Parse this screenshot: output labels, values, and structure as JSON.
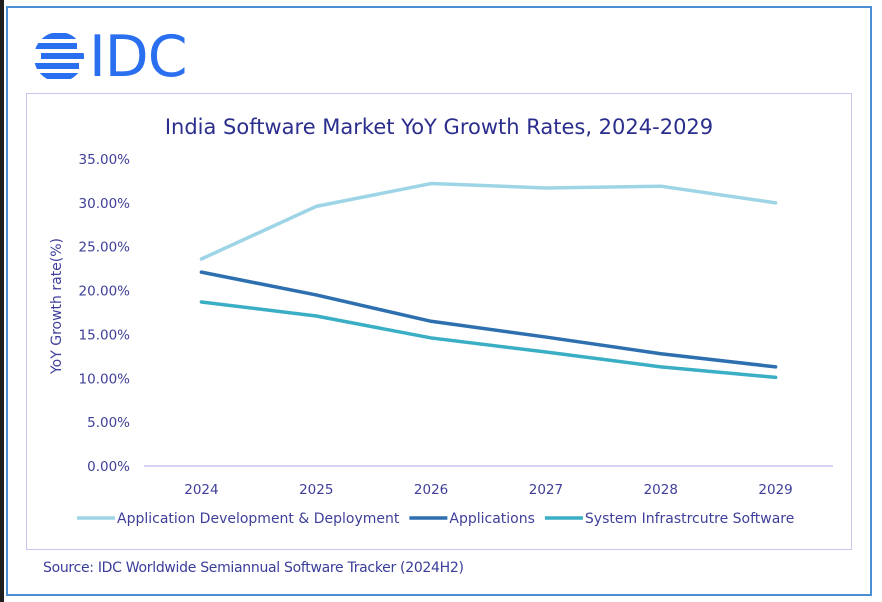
{
  "logo": {
    "text": "IDC",
    "icon": "idc-globe-icon",
    "color": "#2a6ff0"
  },
  "source": "Source: IDC Worldwide Semiannual Software Tracker (2024H2)",
  "chart_data": {
    "type": "line",
    "title": "India Software Market YoY Growth Rates, 2024-2029",
    "xlabel": "",
    "ylabel": "YoY Growth rate(%)",
    "x": [
      "2024",
      "2025",
      "2026",
      "2027",
      "2028",
      "2029"
    ],
    "ylim": [
      0,
      35
    ],
    "yticks": [
      0,
      5,
      10,
      15,
      20,
      25,
      30,
      35
    ],
    "ytick_labels": [
      "0.00%",
      "5.00%",
      "10.00%",
      "15.00%",
      "20.00%",
      "25.00%",
      "30.00%",
      "35.00%"
    ],
    "grid": false,
    "legend": "bottom",
    "series": [
      {
        "name": "Application Development & Deployment",
        "color": "#9dd5e6",
        "values": [
          23.6,
          29.6,
          32.2,
          31.7,
          31.9,
          30.0
        ]
      },
      {
        "name": "Applications",
        "color": "#2e6fb0",
        "values": [
          22.1,
          19.5,
          16.5,
          14.7,
          12.8,
          11.3
        ]
      },
      {
        "name": "System Infrastrcutre Software",
        "color": "#3aaec4",
        "values": [
          18.7,
          17.1,
          14.6,
          13.0,
          11.3,
          10.1
        ]
      }
    ]
  }
}
